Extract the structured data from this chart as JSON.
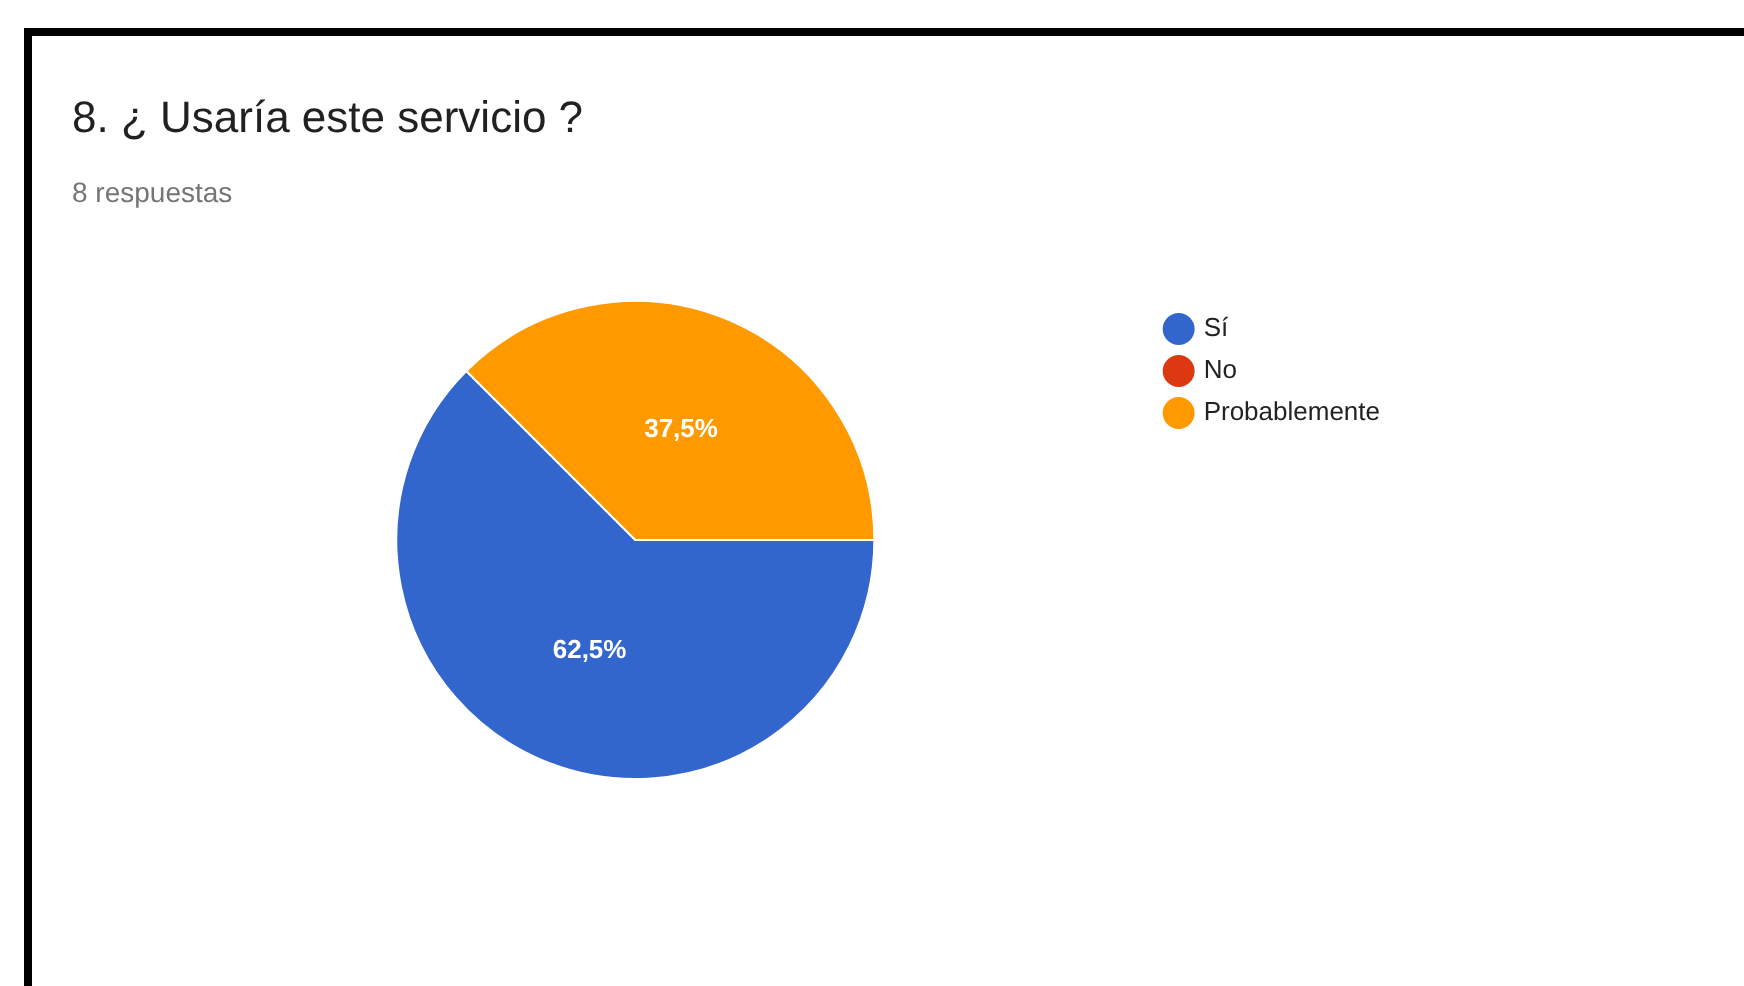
{
  "chart_data": {
    "type": "pie",
    "title": "8. ¿ Usaría este servicio ?",
    "subtitle": "8 respuestas",
    "categories": [
      "Sí",
      "No",
      "Probablemente"
    ],
    "values": [
      62.5,
      0,
      37.5
    ],
    "value_labels": [
      "62,5%",
      null,
      "37,5%"
    ],
    "colors": [
      "#3366cc",
      "#dc3912",
      "#ff9900"
    ],
    "legend": "top right"
  }
}
